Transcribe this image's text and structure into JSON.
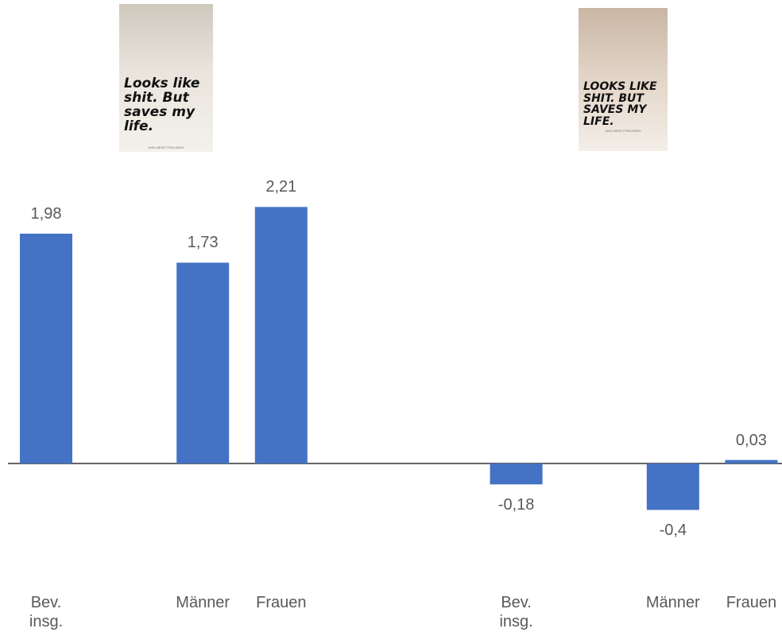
{
  "images": [
    {
      "caption": "Looks like shit. But saves my life.",
      "hashtag": "#HELMERETTENLEBEN"
    },
    {
      "caption": "LOOKS LIKE SHIT. BUT SAVES MY LIFE.",
      "hashtag": "#HELMERETTENLEBEN"
    }
  ],
  "chart_data": {
    "type": "bar",
    "categories": [
      "Bev. insg.",
      null,
      "Männer",
      "Frauen",
      null,
      null,
      "Bev. insg.",
      null,
      "Männer",
      "Frauen"
    ],
    "values": [
      1.98,
      null,
      1.73,
      2.21,
      null,
      null,
      -0.18,
      null,
      -0.4,
      0.03
    ],
    "value_labels": [
      "1,98",
      null,
      "1,73",
      "2,21",
      null,
      null,
      "-0,18",
      null,
      "-0,4",
      "0,03"
    ],
    "color": "#4472c4"
  }
}
